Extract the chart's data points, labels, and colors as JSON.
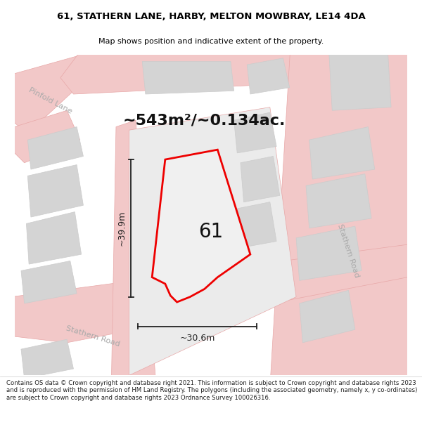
{
  "title_line1": "61, STATHERN LANE, HARBY, MELTON MOWBRAY, LE14 4DA",
  "title_line2": "Map shows position and indicative extent of the property.",
  "area_label": "~543m²/~0.134ac.",
  "property_number": "61",
  "width_label": "~30.6m",
  "height_label": "~39.9m",
  "footer_text": "Contains OS data © Crown copyright and database right 2021. This information is subject to Crown copyright and database rights 2023 and is reproduced with the permission of HM Land Registry. The polygons (including the associated geometry, namely x, y co-ordinates) are subject to Crown copyright and database rights 2023 Ordnance Survey 100026316.",
  "map_bg": "#ebebeb",
  "road_color": "#f2c8c8",
  "road_stroke": "#e8a8a8",
  "building_color": "#d4d4d4",
  "building_stroke": "#cccccc",
  "property_fill": "#f0f0f0",
  "property_stroke": "#ee0000",
  "footer_bg": "#ffffff",
  "title_bg": "#ffffff",
  "road_label_color": "#aaaaaa",
  "dim_color": "#222222"
}
